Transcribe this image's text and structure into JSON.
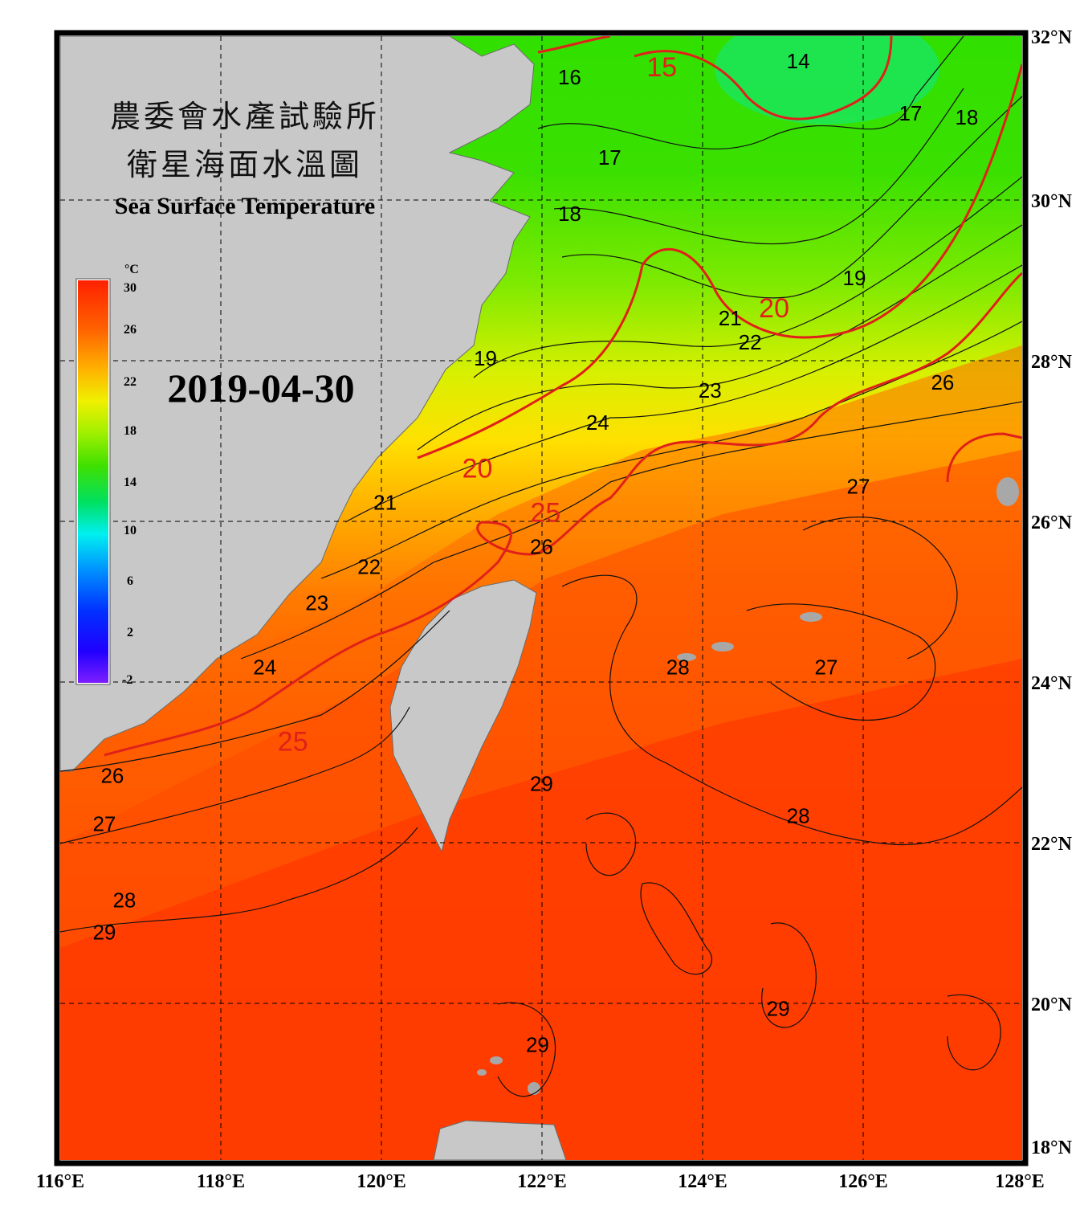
{
  "title": {
    "line1": "農委會水產試驗所",
    "line2": "衛星海面水溫圖",
    "english": "Sea Surface Temperature"
  },
  "date": "2019-04-30",
  "colorbar": {
    "unit": "°C",
    "ticks": [
      "30",
      "26",
      "22",
      "18",
      "14",
      "10",
      "6",
      "2",
      "-2"
    ],
    "colors": [
      "#ff2000",
      "#ff6000",
      "#ffb000",
      "#f0f000",
      "#a0f000",
      "#40e000",
      "#00e060",
      "#00f0f0",
      "#0090ff",
      "#0030ff",
      "#2000ff",
      "#8020ff"
    ]
  },
  "axes": {
    "lon_labels": [
      "116°E",
      "118°E",
      "120°E",
      "122°E",
      "124°E",
      "126°E",
      "128°E"
    ],
    "lat_labels": [
      "32°N",
      "30°N",
      "28°N",
      "26°N",
      "24°N",
      "22°N",
      "20°N",
      "18°N"
    ]
  },
  "contour_labels": [
    {
      "text": "14",
      "lon": 125.2,
      "lat": 31.6,
      "red": false
    },
    {
      "text": "15",
      "lon": 123.5,
      "lat": 31.5,
      "red": true
    },
    {
      "text": "16",
      "lon": 122.35,
      "lat": 31.4,
      "red": false
    },
    {
      "text": "17",
      "lon": 122.85,
      "lat": 30.4,
      "red": false
    },
    {
      "text": "17",
      "lon": 126.6,
      "lat": 30.95,
      "red": false
    },
    {
      "text": "18",
      "lon": 122.35,
      "lat": 29.7,
      "red": false
    },
    {
      "text": "18",
      "lon": 127.3,
      "lat": 30.9,
      "red": false
    },
    {
      "text": "19",
      "lon": 121.3,
      "lat": 27.9,
      "red": false
    },
    {
      "text": "19",
      "lon": 125.9,
      "lat": 28.9,
      "red": false
    },
    {
      "text": "20",
      "lon": 121.2,
      "lat": 26.5,
      "red": true
    },
    {
      "text": "20",
      "lon": 124.9,
      "lat": 28.5,
      "red": true
    },
    {
      "text": "21",
      "lon": 124.35,
      "lat": 28.4,
      "red": false
    },
    {
      "text": "21",
      "lon": 120.05,
      "lat": 26.1,
      "red": false
    },
    {
      "text": "22",
      "lon": 124.6,
      "lat": 28.1,
      "red": false
    },
    {
      "text": "22",
      "lon": 119.85,
      "lat": 25.3,
      "red": false
    },
    {
      "text": "23",
      "lon": 124.1,
      "lat": 27.5,
      "red": false
    },
    {
      "text": "23",
      "lon": 119.2,
      "lat": 24.85,
      "red": false
    },
    {
      "text": "24",
      "lon": 122.7,
      "lat": 27.1,
      "red": false
    },
    {
      "text": "24",
      "lon": 118.55,
      "lat": 24.05,
      "red": false
    },
    {
      "text": "25",
      "lon": 118.9,
      "lat": 23.1,
      "red": true
    },
    {
      "text": "25",
      "lon": 122.05,
      "lat": 25.95,
      "red": true
    },
    {
      "text": "26",
      "lon": 122.0,
      "lat": 25.55,
      "red": false
    },
    {
      "text": "26",
      "lon": 127.0,
      "lat": 27.6,
      "red": false
    },
    {
      "text": "26",
      "lon": 116.65,
      "lat": 22.7,
      "red": false
    },
    {
      "text": "27",
      "lon": 125.95,
      "lat": 26.3,
      "red": false
    },
    {
      "text": "27",
      "lon": 125.55,
      "lat": 24.05,
      "red": false
    },
    {
      "text": "27",
      "lon": 116.55,
      "lat": 22.1,
      "red": false
    },
    {
      "text": "28",
      "lon": 123.7,
      "lat": 24.05,
      "red": false
    },
    {
      "text": "28",
      "lon": 125.2,
      "lat": 22.2,
      "red": false
    },
    {
      "text": "28",
      "lon": 116.8,
      "lat": 21.15,
      "red": false
    },
    {
      "text": "29",
      "lon": 116.55,
      "lat": 20.75,
      "red": false
    },
    {
      "text": "29",
      "lon": 122.0,
      "lat": 22.6,
      "red": false
    },
    {
      "text": "29",
      "lon": 124.95,
      "lat": 19.8,
      "red": false
    },
    {
      "text": "29",
      "lon": 121.95,
      "lat": 19.35,
      "red": false
    }
  ]
}
